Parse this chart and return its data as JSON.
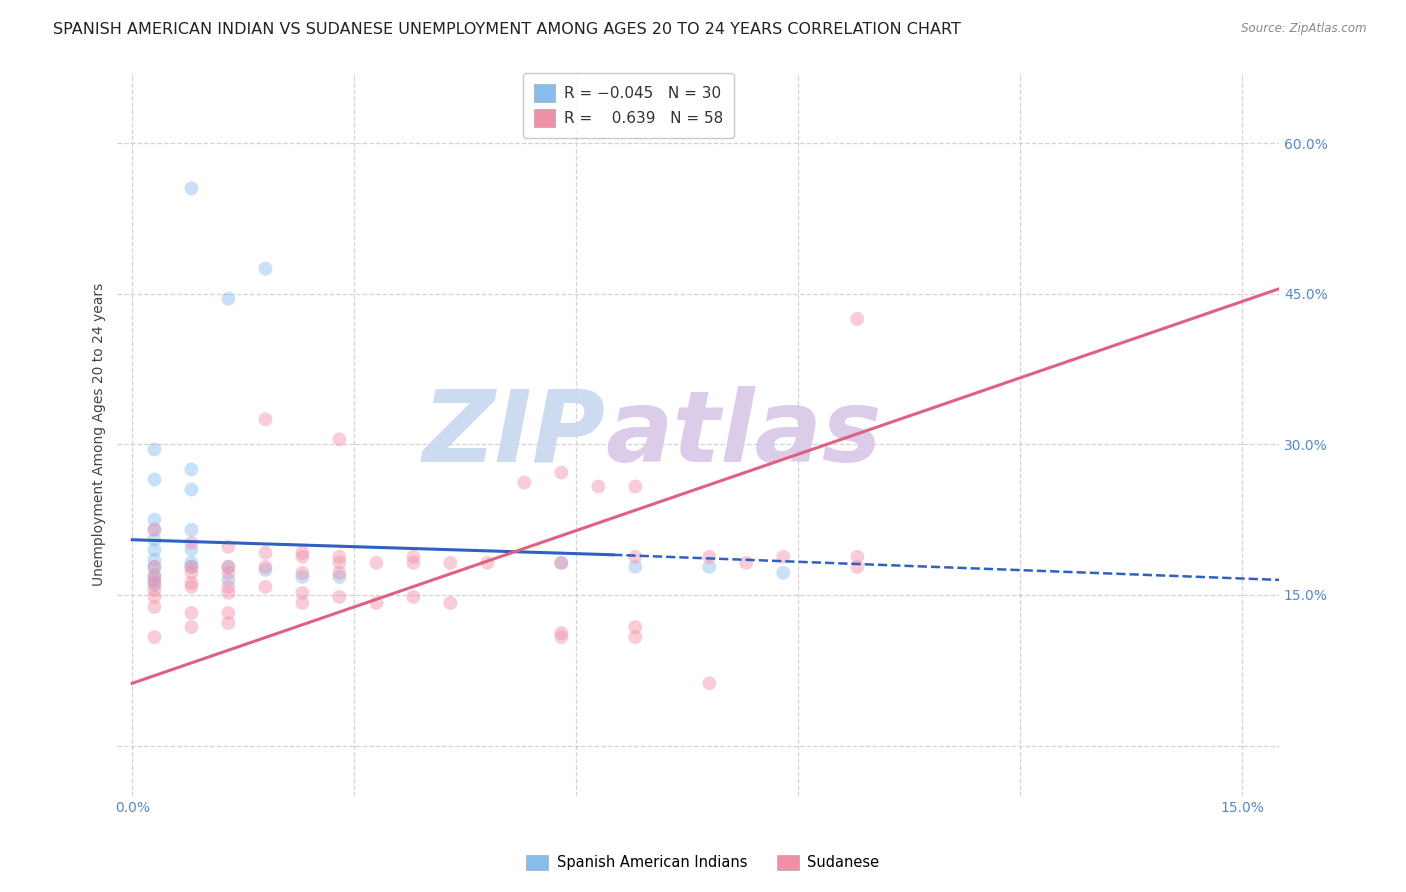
{
  "title": "SPANISH AMERICAN INDIAN VS SUDANESE UNEMPLOYMENT AMONG AGES 20 TO 24 YEARS CORRELATION CHART",
  "source": "Source: ZipAtlas.com",
  "ylabel": "Unemployment Among Ages 20 to 24 years",
  "xlim": [
    -0.002,
    0.155
  ],
  "ylim": [
    -0.05,
    0.67
  ],
  "xticks": [
    0.0,
    0.03,
    0.06,
    0.09,
    0.12,
    0.15
  ],
  "yticks": [
    0.0,
    0.15,
    0.3,
    0.45,
    0.6
  ],
  "xticklabels": [
    "0.0%",
    "",
    "",
    "",
    "",
    "15.0%"
  ],
  "yticklabels": [
    "",
    "15.0%",
    "30.0%",
    "45.0%",
    "60.0%"
  ],
  "watermark_zip": "ZIP",
  "watermark_atlas": "atlas",
  "blue_scatter": [
    [
      0.008,
      0.555
    ],
    [
      0.018,
      0.475
    ],
    [
      0.013,
      0.445
    ],
    [
      0.003,
      0.295
    ],
    [
      0.008,
      0.275
    ],
    [
      0.003,
      0.265
    ],
    [
      0.008,
      0.255
    ],
    [
      0.003,
      0.225
    ],
    [
      0.003,
      0.215
    ],
    [
      0.003,
      0.205
    ],
    [
      0.008,
      0.215
    ],
    [
      0.003,
      0.195
    ],
    [
      0.008,
      0.195
    ],
    [
      0.003,
      0.185
    ],
    [
      0.003,
      0.178
    ],
    [
      0.008,
      0.178
    ],
    [
      0.008,
      0.182
    ],
    [
      0.013,
      0.178
    ],
    [
      0.003,
      0.17
    ],
    [
      0.003,
      0.165
    ],
    [
      0.003,
      0.16
    ],
    [
      0.013,
      0.165
    ],
    [
      0.018,
      0.175
    ],
    [
      0.023,
      0.168
    ],
    [
      0.028,
      0.168
    ],
    [
      0.058,
      0.182
    ],
    [
      0.068,
      0.178
    ],
    [
      0.078,
      0.178
    ],
    [
      0.088,
      0.172
    ]
  ],
  "pink_scatter": [
    [
      0.098,
      0.425
    ],
    [
      0.018,
      0.325
    ],
    [
      0.028,
      0.305
    ],
    [
      0.058,
      0.272
    ],
    [
      0.063,
      0.258
    ],
    [
      0.068,
      0.258
    ],
    [
      0.053,
      0.262
    ],
    [
      0.003,
      0.215
    ],
    [
      0.008,
      0.202
    ],
    [
      0.013,
      0.198
    ],
    [
      0.018,
      0.192
    ],
    [
      0.023,
      0.192
    ],
    [
      0.023,
      0.188
    ],
    [
      0.028,
      0.188
    ],
    [
      0.028,
      0.182
    ],
    [
      0.033,
      0.182
    ],
    [
      0.038,
      0.188
    ],
    [
      0.038,
      0.182
    ],
    [
      0.043,
      0.182
    ],
    [
      0.048,
      0.182
    ],
    [
      0.058,
      0.182
    ],
    [
      0.068,
      0.188
    ],
    [
      0.078,
      0.188
    ],
    [
      0.083,
      0.182
    ],
    [
      0.088,
      0.188
    ],
    [
      0.098,
      0.188
    ],
    [
      0.098,
      0.178
    ],
    [
      0.003,
      0.178
    ],
    [
      0.008,
      0.172
    ],
    [
      0.008,
      0.178
    ],
    [
      0.013,
      0.172
    ],
    [
      0.013,
      0.178
    ],
    [
      0.018,
      0.178
    ],
    [
      0.023,
      0.172
    ],
    [
      0.028,
      0.172
    ],
    [
      0.003,
      0.168
    ],
    [
      0.003,
      0.162
    ],
    [
      0.003,
      0.155
    ],
    [
      0.008,
      0.162
    ],
    [
      0.008,
      0.158
    ],
    [
      0.013,
      0.158
    ],
    [
      0.013,
      0.152
    ],
    [
      0.018,
      0.158
    ],
    [
      0.023,
      0.152
    ],
    [
      0.028,
      0.148
    ],
    [
      0.038,
      0.148
    ],
    [
      0.043,
      0.142
    ],
    [
      0.033,
      0.142
    ],
    [
      0.023,
      0.142
    ],
    [
      0.003,
      0.138
    ],
    [
      0.008,
      0.132
    ],
    [
      0.013,
      0.122
    ],
    [
      0.058,
      0.112
    ],
    [
      0.058,
      0.108
    ],
    [
      0.068,
      0.118
    ],
    [
      0.068,
      0.108
    ],
    [
      0.078,
      0.062
    ],
    [
      0.003,
      0.148
    ],
    [
      0.013,
      0.132
    ],
    [
      0.003,
      0.108
    ],
    [
      0.008,
      0.118
    ]
  ],
  "blue_line_solid": {
    "x0": 0.0,
    "y0": 0.205,
    "x1": 0.065,
    "y1": 0.19
  },
  "blue_line_dashed": {
    "x0": 0.065,
    "y0": 0.19,
    "x1": 0.155,
    "y1": 0.165
  },
  "pink_line": {
    "x0": 0.0,
    "y0": 0.062,
    "x1": 0.155,
    "y1": 0.455
  },
  "scatter_size": 100,
  "scatter_alpha": 0.45,
  "blue_color": "#88bbee",
  "pink_color": "#f090a8",
  "blue_line_color": "#3060c0",
  "pink_line_color": "#e06080",
  "grid_color": "#c8c8c8",
  "bg_color": "#ffffff",
  "tick_color": "#5588cc",
  "title_fontsize": 11.5,
  "axis_label_fontsize": 10,
  "tick_fontsize": 10,
  "legend_blue_label_r": "R = ",
  "legend_blue_r_val": "-0.045",
  "legend_blue_n": "N = 30",
  "legend_pink_label_r": "R =  ",
  "legend_pink_r_val": "0.639",
  "legend_pink_n": "N = 58"
}
